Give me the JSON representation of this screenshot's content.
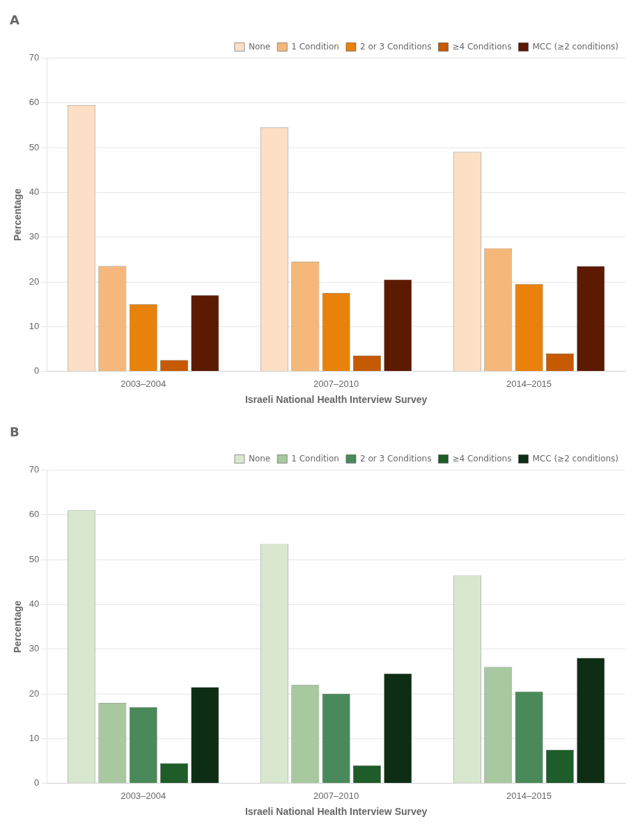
{
  "chart_data": [
    {
      "type": "bar",
      "title": "A",
      "xlabel": "Israeli National Health Interview Survey",
      "ylabel": "Percentage",
      "categories": [
        "2003–2004",
        "2007–2010",
        "2014–2015"
      ],
      "series": [
        {
          "name": "None",
          "color": "#FCDFC4",
          "values": [
            59.5,
            54.5,
            49.0
          ]
        },
        {
          "name": "1 Condition",
          "color": "#F5B87A",
          "values": [
            23.5,
            24.5,
            27.5
          ]
        },
        {
          "name": "2 or 3 Conditions",
          "color": "#E8820A",
          "values": [
            15.0,
            17.5,
            19.5
          ]
        },
        {
          "name": "≥4 Conditions",
          "color": "#C55A00",
          "values": [
            2.5,
            3.5,
            4.0
          ]
        },
        {
          "name": "MCC (≥2 conditions)",
          "color": "#5C1A00",
          "values": [
            17.0,
            20.5,
            23.5
          ]
        }
      ],
      "ylim": [
        0,
        70
      ],
      "yticks": [
        0,
        10,
        20,
        30,
        40,
        50,
        60,
        70
      ],
      "grid": true,
      "legend": "upper right"
    },
    {
      "type": "bar",
      "title": "B",
      "xlabel": "Israeli National Health Interview Survey",
      "ylabel": "Percentage",
      "categories": [
        "2003–2004",
        "2007–2010",
        "2014–2015"
      ],
      "series": [
        {
          "name": "None",
          "color": "#D8E8D0",
          "values": [
            61.0,
            53.5,
            46.5
          ]
        },
        {
          "name": "1 Condition",
          "color": "#A8C8A0",
          "values": [
            18.0,
            22.0,
            26.0
          ]
        },
        {
          "name": "2 or 3 Conditions",
          "color": "#4A8A5A",
          "values": [
            17.0,
            20.0,
            20.5
          ]
        },
        {
          "name": "≥4 Conditions",
          "color": "#1E5C2A",
          "values": [
            4.5,
            4.0,
            7.5
          ]
        },
        {
          "name": "MCC (≥2 conditions)",
          "color": "#0D2E14",
          "values": [
            21.5,
            24.5,
            28.0
          ]
        }
      ],
      "ylim": [
        0,
        70
      ],
      "yticks": [
        0,
        10,
        20,
        30,
        40,
        50,
        60,
        70
      ],
      "grid": true,
      "legend": "upper right"
    }
  ]
}
